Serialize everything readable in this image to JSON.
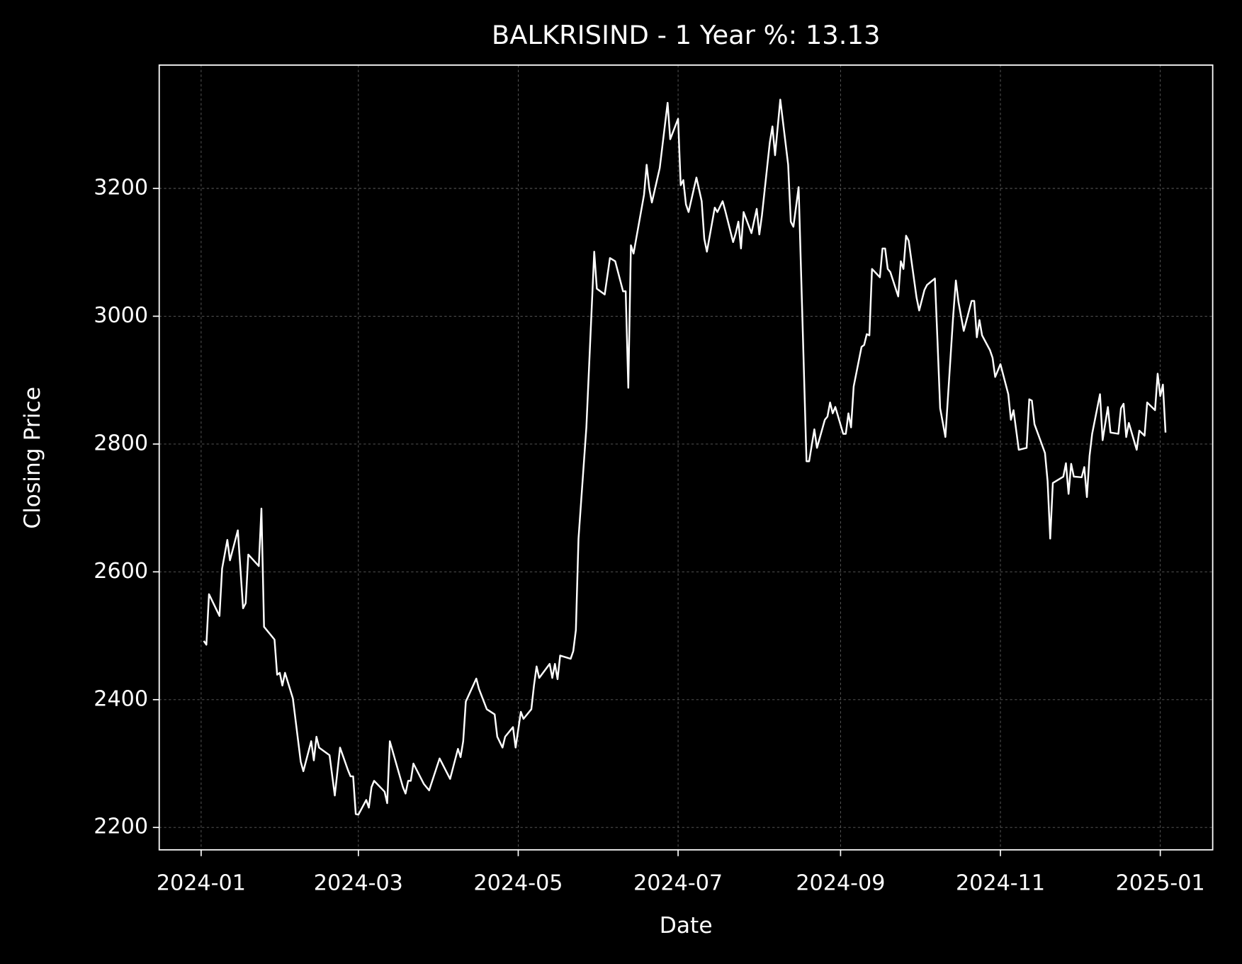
{
  "chart_data": {
    "type": "line",
    "title": "BALKRISIND - 1 Year %: 13.13",
    "x_label": "Date",
    "y_label": "Closing Price",
    "grid": true,
    "background": "#000000",
    "xlim": [
      "2023-12-16",
      "2025-01-21"
    ],
    "ylim": [
      2165,
      3393
    ],
    "xticks": [
      {
        "value": "2024-01-01",
        "label": "2024-01"
      },
      {
        "value": "2024-03-01",
        "label": "2024-03"
      },
      {
        "value": "2024-05-01",
        "label": "2024-05"
      },
      {
        "value": "2024-07-01",
        "label": "2024-07"
      },
      {
        "value": "2024-09-01",
        "label": "2024-09"
      },
      {
        "value": "2024-11-01",
        "label": "2024-11"
      },
      {
        "value": "2025-01-01",
        "label": "2025-01"
      }
    ],
    "yticks": [
      2200,
      2400,
      2600,
      2800,
      3000,
      3200
    ],
    "x": [
      "2024-01-02",
      "2024-01-03",
      "2024-01-04",
      "2024-01-08",
      "2024-01-09",
      "2024-01-11",
      "2024-01-12",
      "2024-01-15",
      "2024-01-17",
      "2024-01-18",
      "2024-01-19",
      "2024-01-23",
      "2024-01-24",
      "2024-01-25",
      "2024-01-29",
      "2024-01-30",
      "2024-01-31",
      "2024-02-01",
      "2024-02-02",
      "2024-02-05",
      "2024-02-08",
      "2024-02-09",
      "2024-02-12",
      "2024-02-13",
      "2024-02-14",
      "2024-02-15",
      "2024-02-19",
      "2024-02-21",
      "2024-02-23",
      "2024-02-26",
      "2024-02-27",
      "2024-02-28",
      "2024-02-29",
      "2024-03-01",
      "2024-03-04",
      "2024-03-05",
      "2024-03-06",
      "2024-03-07",
      "2024-03-11",
      "2024-03-12",
      "2024-03-13",
      "2024-03-18",
      "2024-03-19",
      "2024-03-20",
      "2024-03-21",
      "2024-03-22",
      "2024-03-26",
      "2024-03-28",
      "2024-04-01",
      "2024-04-05",
      "2024-04-08",
      "2024-04-09",
      "2024-04-10",
      "2024-04-11",
      "2024-04-15",
      "2024-04-16",
      "2024-04-19",
      "2024-04-22",
      "2024-04-23",
      "2024-04-25",
      "2024-04-26",
      "2024-04-29",
      "2024-04-30",
      "2024-05-02",
      "2024-05-03",
      "2024-05-06",
      "2024-05-07",
      "2024-05-08",
      "2024-05-09",
      "2024-05-13",
      "2024-05-14",
      "2024-05-15",
      "2024-05-16",
      "2024-05-17",
      "2024-05-21",
      "2024-05-22",
      "2024-05-23",
      "2024-05-24",
      "2024-05-27",
      "2024-05-30",
      "2024-05-31",
      "2024-06-03",
      "2024-06-05",
      "2024-06-07",
      "2024-06-10",
      "2024-06-11",
      "2024-06-12",
      "2024-06-13",
      "2024-06-14",
      "2024-06-18",
      "2024-06-19",
      "2024-06-20",
      "2024-06-21",
      "2024-06-24",
      "2024-06-27",
      "2024-06-28",
      "2024-07-01",
      "2024-07-02",
      "2024-07-03",
      "2024-07-04",
      "2024-07-05",
      "2024-07-08",
      "2024-07-10",
      "2024-07-11",
      "2024-07-12",
      "2024-07-15",
      "2024-07-16",
      "2024-07-18",
      "2024-07-19",
      "2024-07-22",
      "2024-07-23",
      "2024-07-24",
      "2024-07-25",
      "2024-07-26",
      "2024-07-29",
      "2024-07-31",
      "2024-08-01",
      "2024-08-02",
      "2024-08-05",
      "2024-08-06",
      "2024-08-07",
      "2024-08-09",
      "2024-08-12",
      "2024-08-13",
      "2024-08-14",
      "2024-08-16",
      "2024-08-19",
      "2024-08-20",
      "2024-08-22",
      "2024-08-23",
      "2024-08-26",
      "2024-08-27",
      "2024-08-28",
      "2024-08-29",
      "2024-08-30",
      "2024-09-02",
      "2024-09-03",
      "2024-09-04",
      "2024-09-05",
      "2024-09-06",
      "2024-09-09",
      "2024-09-10",
      "2024-09-11",
      "2024-09-12",
      "2024-09-13",
      "2024-09-16",
      "2024-09-17",
      "2024-09-18",
      "2024-09-19",
      "2024-09-20",
      "2024-09-23",
      "2024-09-24",
      "2024-09-25",
      "2024-09-26",
      "2024-09-27",
      "2024-09-30",
      "2024-10-01",
      "2024-10-03",
      "2024-10-04",
      "2024-10-07",
      "2024-10-08",
      "2024-10-09",
      "2024-10-11",
      "2024-10-14",
      "2024-10-15",
      "2024-10-16",
      "2024-10-18",
      "2024-10-21",
      "2024-10-22",
      "2024-10-23",
      "2024-10-24",
      "2024-10-25",
      "2024-10-28",
      "2024-10-29",
      "2024-10-30",
      "2024-11-01",
      "2024-11-04",
      "2024-11-05",
      "2024-11-06",
      "2024-11-08",
      "2024-11-11",
      "2024-11-12",
      "2024-11-13",
      "2024-11-14",
      "2024-11-18",
      "2024-11-19",
      "2024-11-20",
      "2024-11-21",
      "2024-11-25",
      "2024-11-26",
      "2024-11-27",
      "2024-11-28",
      "2024-11-29",
      "2024-12-02",
      "2024-12-03",
      "2024-12-04",
      "2024-12-05",
      "2024-12-06",
      "2024-12-09",
      "2024-12-10",
      "2024-12-12",
      "2024-12-13",
      "2024-12-16",
      "2024-12-17",
      "2024-12-18",
      "2024-12-19",
      "2024-12-20",
      "2024-12-23",
      "2024-12-24",
      "2024-12-26",
      "2024-12-27",
      "2024-12-30",
      "2024-12-31",
      "2025-01-01",
      "2025-01-02",
      "2025-01-03"
    ],
    "series": [
      {
        "name": "Closing Price",
        "color": "#ffffff",
        "values": [
          2492,
          2486,
          2565,
          2531,
          2605,
          2650,
          2618,
          2665,
          2543,
          2551,
          2627,
          2609,
          2699,
          2514,
          2494,
          2439,
          2442,
          2422,
          2442,
          2402,
          2303,
          2288,
          2335,
          2305,
          2342,
          2325,
          2313,
          2250,
          2325,
          2290,
          2280,
          2280,
          2221,
          2220,
          2243,
          2231,
          2263,
          2273,
          2256,
          2238,
          2335,
          2263,
          2253,
          2273,
          2273,
          2300,
          2268,
          2258,
          2308,
          2276,
          2323,
          2310,
          2335,
          2397,
          2433,
          2417,
          2385,
          2377,
          2342,
          2325,
          2342,
          2357,
          2325,
          2381,
          2370,
          2385,
          2422,
          2452,
          2434,
          2456,
          2434,
          2456,
          2432,
          2469,
          2464,
          2476,
          2509,
          2652,
          2826,
          3101,
          3043,
          3034,
          3091,
          3086,
          3039,
          3039,
          2888,
          3111,
          3098,
          3190,
          3237,
          3200,
          3178,
          3232,
          3334,
          3277,
          3309,
          3205,
          3213,
          3175,
          3163,
          3217,
          3180,
          3121,
          3101,
          3170,
          3163,
          3180,
          3165,
          3116,
          3130,
          3148,
          3106,
          3163,
          3130,
          3168,
          3128,
          3158,
          3272,
          3297,
          3252,
          3339,
          3237,
          3148,
          3140,
          3202,
          2773,
          2773,
          2823,
          2794,
          2838,
          2843,
          2865,
          2848,
          2858,
          2816,
          2816,
          2848,
          2826,
          2890,
          2952,
          2955,
          2972,
          2970,
          3074,
          3061,
          3106,
          3106,
          3074,
          3069,
          3031,
          3086,
          3074,
          3126,
          3118,
          3029,
          3009,
          3041,
          3049,
          3059,
          2960,
          2856,
          2811,
          3002,
          3056,
          3022,
          2977,
          3024,
          3024,
          2967,
          2994,
          2970,
          2947,
          2935,
          2905,
          2925,
          2878,
          2838,
          2853,
          2791,
          2794,
          2870,
          2868,
          2831,
          2786,
          2742,
          2652,
          2739,
          2749,
          2770,
          2722,
          2769,
          2749,
          2748,
          2764,
          2717,
          2781,
          2816,
          2878,
          2806,
          2858,
          2818,
          2816,
          2856,
          2863,
          2811,
          2833,
          2791,
          2821,
          2813,
          2865,
          2853,
          2910,
          2875,
          2893,
          2818
        ]
      }
    ]
  }
}
